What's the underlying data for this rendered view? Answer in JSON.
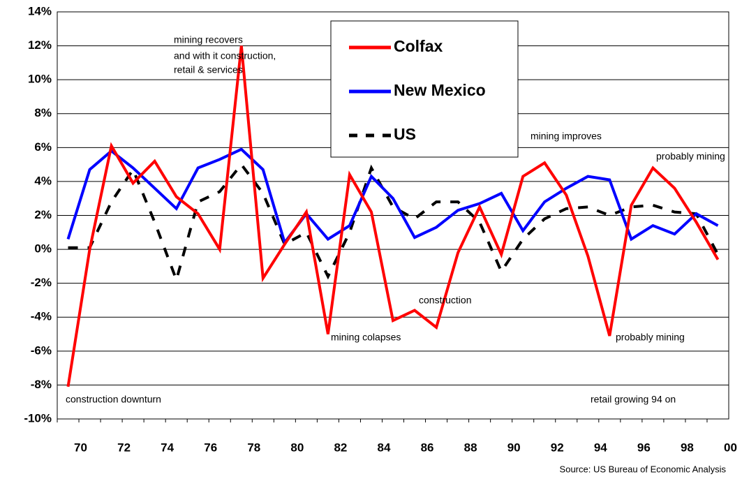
{
  "chart_data": {
    "type": "line",
    "categories": [
      "70",
      null,
      "72",
      null,
      "74",
      null,
      "76",
      null,
      "78",
      null,
      "80",
      null,
      "82",
      null,
      "84",
      null,
      "86",
      null,
      "88",
      null,
      "90",
      null,
      "92",
      null,
      "94",
      null,
      "96",
      null,
      "98",
      null,
      "00"
    ],
    "series": [
      {
        "name": "Colfax",
        "color": "#ff0000",
        "dash": false,
        "values": [
          -8.1,
          0,
          6.1,
          3.9,
          5.2,
          3.1,
          2.1,
          0,
          12.0,
          -1.7,
          0.3,
          2.2,
          -5.0,
          4.4,
          2.2,
          -4.2,
          -3.6,
          -4.6,
          -0.2,
          2.5,
          -0.3,
          4.3,
          5.1,
          3.2,
          -0.4,
          -5.1,
          2.6,
          4.8,
          3.6,
          1.6,
          -0.6
        ]
      },
      {
        "name": "New Mexico",
        "color": "#0000ff",
        "dash": false,
        "values": [
          0.6,
          4.7,
          5.8,
          4.8,
          3.6,
          2.4,
          4.8,
          5.3,
          5.9,
          4.7,
          0.4,
          2.1,
          0.6,
          1.4,
          4.3,
          3.0,
          0.7,
          1.3,
          2.3,
          2.7,
          3.3,
          1.1,
          2.8,
          3.6,
          4.3,
          4.1,
          0.6,
          1.4,
          0.9,
          2.1,
          1.4
        ]
      },
      {
        "name": "US",
        "color": "#000000",
        "dash": true,
        "values": [
          0.1,
          0.1,
          2.8,
          4.7,
          1.6,
          -1.8,
          2.8,
          3.4,
          5.0,
          3.3,
          0.3,
          1.0,
          -1.6,
          1.0,
          4.8,
          2.5,
          1.8,
          2.8,
          2.8,
          1.6,
          -1.3,
          0.6,
          1.8,
          2.4,
          2.5,
          2.0,
          2.5,
          2.6,
          2.2,
          2.1,
          -0.3
        ]
      }
    ],
    "ylim": [
      -10,
      14
    ],
    "yticks": [
      {
        "value": -10,
        "label": "-10%"
      },
      {
        "value": -8,
        "label": "-8%"
      },
      {
        "value": -6,
        "label": "-6%"
      },
      {
        "value": -4,
        "label": "-4%"
      },
      {
        "value": -2,
        "label": "-2%"
      },
      {
        "value": 0,
        "label": "0%"
      },
      {
        "value": 2,
        "label": "2%"
      },
      {
        "value": 4,
        "label": "4%"
      },
      {
        "value": 6,
        "label": "6%"
      },
      {
        "value": 8,
        "label": "8%"
      },
      {
        "value": 10,
        "label": "10%"
      },
      {
        "value": 12,
        "label": "12%"
      },
      {
        "value": 14,
        "label": "14%"
      }
    ],
    "grid": true,
    "annotations": [
      "mining recovers",
      "and with it construction,",
      "retail & services",
      "mining colapses",
      "construction",
      "mining improves",
      "probably mining",
      "probably mining",
      "construction downturn",
      "retail growing 94 on"
    ],
    "source": "Source:  US Bureau of Economic Analysis"
  }
}
